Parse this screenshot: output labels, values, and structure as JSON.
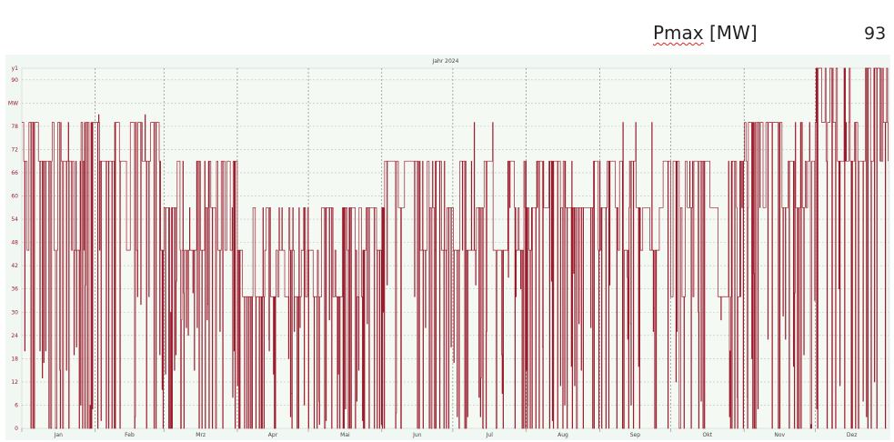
{
  "header": {
    "label_main": "Pmax",
    "label_unit": "[MW]",
    "value": "93"
  },
  "chart_data": {
    "type": "line",
    "title": "Jahr 2024",
    "ylabel": "MW",
    "y_top_label": "y1",
    "ylim": [
      0,
      93
    ],
    "yticks": [
      0,
      6,
      12,
      18,
      24,
      30,
      36,
      42,
      48,
      54,
      60,
      66,
      72,
      78,
      84,
      90
    ],
    "ytick_labels": [
      "0",
      "6",
      "12",
      "18",
      "24",
      "30",
      "36",
      "42",
      "48",
      "54",
      "60",
      "66",
      "72",
      "78",
      "MW",
      "90"
    ],
    "months": [
      "Jan",
      "Feb",
      "Mrz",
      "Apr",
      "Mai",
      "Jun",
      "Jul",
      "Aug",
      "Sep",
      "Okt",
      "Nov",
      "Dez"
    ],
    "grid": true,
    "series": [
      {
        "color": "#9b1c2c",
        "monthly_profile": [
          {
            "month": "Jan",
            "plateaus": [
              79,
              69,
              46
            ],
            "max": 79
          },
          {
            "month": "Feb",
            "plateaus": [
              79,
              69,
              46
            ],
            "max": 81
          },
          {
            "month": "Mrz",
            "plateaus": [
              57,
              46,
              69
            ],
            "max": 69
          },
          {
            "month": "Apr",
            "plateaus": [
              46,
              34,
              57
            ],
            "max": 57
          },
          {
            "month": "Mai",
            "plateaus": [
              46,
              34,
              57
            ],
            "max": 57
          },
          {
            "month": "Jun",
            "plateaus": [
              57,
              46,
              69
            ],
            "max": 69
          },
          {
            "month": "Jul",
            "plateaus": [
              57,
              69,
              46
            ],
            "max": 79
          },
          {
            "month": "Aug",
            "plateaus": [
              57,
              46,
              69
            ],
            "max": 69
          },
          {
            "month": "Sep",
            "plateaus": [
              69,
              57,
              46
            ],
            "max": 79
          },
          {
            "month": "Okt",
            "plateaus": [
              34,
              57,
              69
            ],
            "max": 69
          },
          {
            "month": "Nov",
            "plateaus": [
              69,
              79,
              57
            ],
            "max": 79
          },
          {
            "month": "Dez",
            "plateaus": [
              79,
              93,
              69
            ],
            "max": 93
          }
        ]
      }
    ]
  }
}
